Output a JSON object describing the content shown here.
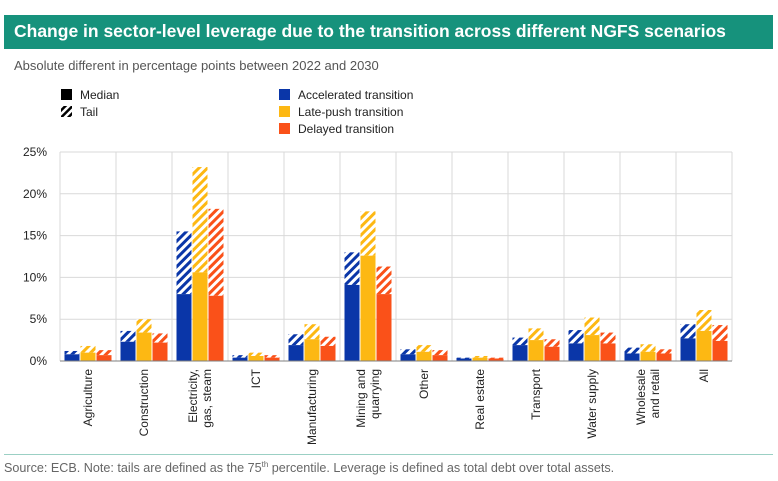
{
  "title": "Change in sector-level leverage due to the transition across different NGFS scenarios",
  "subtitle": "Absolute different in percentage points between 2022 and 2030",
  "source": {
    "prefix": "Source: ECB. Note: tails are defined as the 75",
    "superscript": "th",
    "suffix": " percentile. Leverage is defined as total debt over total assets."
  },
  "legend": {
    "styles": [
      {
        "label": "Median",
        "pattern": "solid"
      },
      {
        "label": "Tail",
        "pattern": "hatched"
      }
    ],
    "scenarios": [
      {
        "label": "Accelerated transition",
        "color": "#0a36a8"
      },
      {
        "label": "Late-push transition",
        "color": "#fdb813"
      },
      {
        "label": "Delayed transition",
        "color": "#fa5119"
      }
    ]
  },
  "chart_data": {
    "type": "bar",
    "stacked_components": [
      "Median",
      "Tail"
    ],
    "categories": [
      [
        "Agriculture"
      ],
      [
        "Construction"
      ],
      [
        "Electricity,",
        "gas, steam"
      ],
      [
        "ICT"
      ],
      [
        "Manufacturing"
      ],
      [
        "Mining and",
        "quarrying"
      ],
      [
        "Other"
      ],
      [
        "Real estate"
      ],
      [
        "Transport"
      ],
      [
        "Water supply"
      ],
      [
        "Wholesale",
        "and retail"
      ],
      [
        "All"
      ]
    ],
    "ylim": [
      0,
      25
    ],
    "yticks": [
      "0%",
      "5%",
      "10%",
      "15%",
      "20%",
      "25%"
    ],
    "ytick_values": [
      0,
      5,
      10,
      15,
      20,
      25
    ],
    "series": [
      {
        "name": "Accelerated transition",
        "color": "#0a36a8",
        "median": [
          0.8,
          2.3,
          8.0,
          0.4,
          1.9,
          9.1,
          0.8,
          0.3,
          1.9,
          2.1,
          0.9,
          2.7
        ],
        "tail": [
          1.2,
          3.6,
          15.5,
          0.7,
          3.2,
          13.0,
          1.4,
          0.4,
          2.8,
          3.7,
          1.6,
          4.4
        ]
      },
      {
        "name": "Late-push transition",
        "color": "#fdb813",
        "median": [
          1.0,
          3.4,
          10.6,
          0.6,
          2.6,
          12.6,
          1.1,
          0.4,
          2.5,
          3.1,
          1.1,
          3.6
        ],
        "tail": [
          1.8,
          5.0,
          23.2,
          1.0,
          4.4,
          17.9,
          1.9,
          0.6,
          3.9,
          5.2,
          2.0,
          6.1
        ]
      },
      {
        "name": "Delayed transition",
        "color": "#fa5119",
        "median": [
          0.7,
          2.2,
          7.8,
          0.4,
          1.8,
          8.0,
          0.7,
          0.3,
          1.7,
          2.1,
          0.9,
          2.4
        ],
        "tail": [
          1.3,
          3.3,
          18.2,
          0.7,
          2.9,
          11.3,
          1.3,
          0.4,
          2.6,
          3.4,
          1.4,
          4.3
        ]
      }
    ],
    "grid": true,
    "legend_position": "top"
  }
}
